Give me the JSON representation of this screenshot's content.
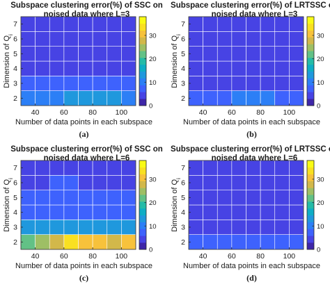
{
  "colormap": [
    "#3e26a8",
    "#4743e4",
    "#3e62fd",
    "#2c7ff6",
    "#1f98dd",
    "#0eadc5",
    "#24bba7",
    "#62c186",
    "#9ebf65",
    "#d2b84a",
    "#f7c23b",
    "#f9e021",
    "#f9fb14"
  ],
  "cell_edge_color": "#ffffff",
  "chart_data": [
    {
      "type": "heatmap",
      "title": "Subspace clustering error(%) of SSC on",
      "subtitle": "noised data where L=3",
      "xlabel": "Number of data points in each subspace",
      "ylabel": "Dimension of Q",
      "ylabel_sub": "i",
      "panel_label": "(a)",
      "x_ticks": [
        "40",
        "60",
        "80",
        "100"
      ],
      "y_ticks": [
        "2",
        "3",
        "4",
        "5",
        "6",
        "7"
      ],
      "x": [
        35,
        45,
        55,
        65,
        75,
        85,
        95,
        105
      ],
      "y": [
        2,
        3,
        4,
        5,
        6,
        7
      ],
      "colorbar_ticks": [
        "0",
        "10",
        "20",
        "30"
      ],
      "clim": [
        0,
        38
      ],
      "values": [
        [
          10,
          11,
          11,
          14,
          14,
          14,
          12,
          11
        ],
        [
          5,
          5,
          5,
          5,
          5,
          5,
          5,
          5
        ],
        [
          4,
          4,
          4,
          4,
          4,
          4,
          4,
          4
        ],
        [
          4,
          4,
          4,
          4,
          4,
          4,
          4,
          4
        ],
        [
          3,
          3,
          3,
          3,
          3,
          3,
          3,
          3
        ],
        [
          3,
          3,
          3,
          3,
          3,
          3,
          3,
          3
        ]
      ]
    },
    {
      "type": "heatmap",
      "title": "Subspace clustering error(%) of LRTSSC on",
      "subtitle": "noised data where L=3",
      "xlabel": "Number of data points in each subspace",
      "ylabel": "Dimension of Q",
      "ylabel_sub": "i",
      "panel_label": "(b)",
      "x_ticks": [
        "40",
        "60",
        "80",
        "100"
      ],
      "y_ticks": [
        "2",
        "3",
        "4",
        "5",
        "6",
        "7"
      ],
      "x": [
        35,
        45,
        55,
        65,
        75,
        85,
        95,
        105
      ],
      "y": [
        2,
        3,
        4,
        5,
        6,
        7
      ],
      "colorbar_ticks": [
        "0",
        "10",
        "20",
        "30"
      ],
      "clim": [
        0,
        38
      ],
      "values": [
        [
          7,
          7,
          7,
          9,
          9,
          8,
          7,
          7
        ],
        [
          3,
          3,
          3,
          3,
          3,
          3,
          3,
          3
        ],
        [
          2,
          2,
          2,
          2,
          2,
          2,
          2,
          2
        ],
        [
          2,
          2,
          2,
          2,
          2,
          2,
          2,
          2
        ],
        [
          2,
          2,
          2,
          2,
          2,
          2,
          2,
          2
        ],
        [
          2,
          2,
          2,
          2,
          2,
          2,
          2,
          2
        ]
      ]
    },
    {
      "type": "heatmap",
      "title": "Subspace clustering error(%) of SSC on",
      "subtitle": "noised data where L=6",
      "xlabel": "Number of data points in each subspace",
      "ylabel": "Dimension of Q",
      "ylabel_sub": "i",
      "panel_label": "(c)",
      "x_ticks": [
        "40",
        "60",
        "80",
        "100"
      ],
      "y_ticks": [
        "2",
        "3",
        "4",
        "5",
        "6",
        "7"
      ],
      "x": [
        35,
        45,
        55,
        65,
        75,
        85,
        95,
        105
      ],
      "y": [
        2,
        3,
        4,
        5,
        6,
        7
      ],
      "colorbar_ticks": [
        "0",
        "10",
        "20",
        "30"
      ],
      "clim": [
        0,
        38
      ],
      "values": [
        [
          21,
          26,
          28,
          34,
          33,
          31,
          30,
          32
        ],
        [
          12,
          12,
          12,
          12,
          12,
          12,
          12,
          12
        ],
        [
          7,
          7,
          7,
          7,
          7,
          7,
          7,
          7
        ],
        [
          5,
          5,
          5,
          5,
          5,
          5,
          5,
          5
        ],
        [
          4,
          4,
          5,
          5,
          4,
          4,
          4,
          4
        ],
        [
          4,
          4,
          4,
          4,
          4,
          4,
          4,
          4
        ]
      ]
    },
    {
      "type": "heatmap",
      "title": "Subspace clustering error(%) of LRTSSC on",
      "subtitle": "noised data where L=6",
      "xlabel": "Number of data points in each subspace",
      "ylabel": "Dimension of Q",
      "ylabel_sub": "i",
      "panel_label": "(d)",
      "x_ticks": [
        "40",
        "60",
        "80",
        "100"
      ],
      "y_ticks": [
        "2",
        "3",
        "4",
        "5",
        "6",
        "7"
      ],
      "x": [
        35,
        45,
        55,
        65,
        75,
        85,
        95,
        105
      ],
      "y": [
        2,
        3,
        4,
        5,
        6,
        7
      ],
      "colorbar_ticks": [
        "0",
        "10",
        "20",
        "30"
      ],
      "clim": [
        0,
        38
      ],
      "values": [
        [
          7,
          7,
          7,
          7,
          7,
          7,
          7,
          7
        ],
        [
          3,
          3,
          3,
          3,
          3,
          3,
          3,
          3
        ],
        [
          3,
          3,
          3,
          3,
          3,
          3,
          3,
          3
        ],
        [
          2,
          2,
          2,
          2,
          2,
          2,
          2,
          2
        ],
        [
          2,
          2,
          2,
          2,
          2,
          2,
          2,
          2
        ],
        [
          2,
          2,
          2,
          2,
          2,
          2,
          2,
          2
        ]
      ]
    }
  ]
}
